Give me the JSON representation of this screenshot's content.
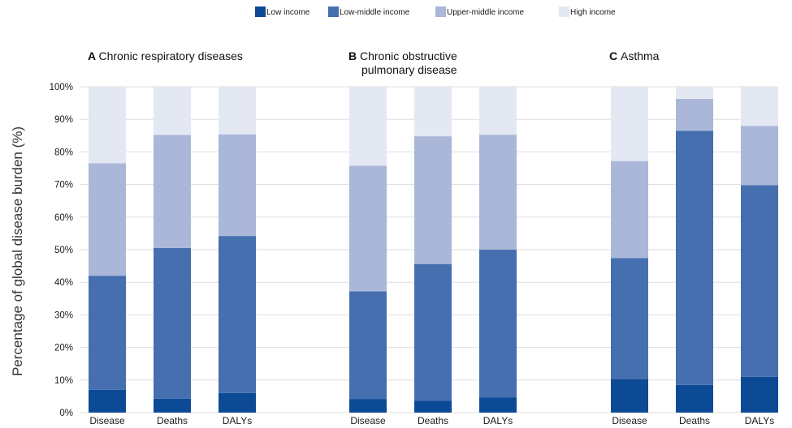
{
  "chart_data": {
    "type": "bar",
    "stacked": true,
    "ylabel": "Percentage of global disease burden (%)",
    "ylim": [
      0,
      100
    ],
    "yticks": [
      "0%",
      "10%",
      "20%",
      "30%",
      "40%",
      "50%",
      "60%",
      "70%",
      "80%",
      "90%",
      "100%"
    ],
    "grid": true,
    "legend_position": "top-center",
    "legend": [
      {
        "name": "Low income",
        "color": "#0d4a96"
      },
      {
        "name": "Low-middle income",
        "color": "#466fb0"
      },
      {
        "name": "Upper-middle income",
        "color": "#abb7d9"
      },
      {
        "name": "High income",
        "color": "#e4e8f3"
      }
    ],
    "panels": [
      {
        "letter": "A",
        "title_lines": [
          "Chronic respiratory diseases"
        ],
        "categories": [
          "Disease",
          "Deaths",
          "DALYs"
        ],
        "series": [
          {
            "name": "Low income",
            "values": [
              7,
              4.3,
              6
            ]
          },
          {
            "name": "Low-middle income",
            "values": [
              35,
              46.2,
              48.2
            ]
          },
          {
            "name": "Upper-middle income",
            "values": [
              34.5,
              34.7,
              31.2
            ]
          },
          {
            "name": "High income",
            "values": [
              23.5,
              14.8,
              14.6
            ]
          }
        ]
      },
      {
        "letter": "B",
        "title_lines": [
          "Chronic obstructive",
          "pulmonary disease"
        ],
        "categories": [
          "Disease",
          "Deaths",
          "DALYs"
        ],
        "series": [
          {
            "name": "Low income",
            "values": [
              4.2,
              3.6,
              4.6
            ]
          },
          {
            "name": "Low-middle income",
            "values": [
              33,
              42,
              45.4
            ]
          },
          {
            "name": "Upper-middle income",
            "values": [
              38.6,
              39.2,
              35.3
            ]
          },
          {
            "name": "High income",
            "values": [
              24.2,
              15.2,
              14.7
            ]
          }
        ]
      },
      {
        "letter": "C",
        "title_lines": [
          "Asthma"
        ],
        "categories": [
          "Disease",
          "Deaths",
          "DALYs"
        ],
        "series": [
          {
            "name": "Low income",
            "values": [
              10.2,
              8.5,
              11
            ]
          },
          {
            "name": "Low-middle income",
            "values": [
              37.2,
              78,
              58.8
            ]
          },
          {
            "name": "Upper-middle income",
            "values": [
              29.8,
              9.8,
              18.2
            ]
          },
          {
            "name": "High income",
            "values": [
              22.8,
              3.7,
              12
            ]
          }
        ]
      }
    ]
  }
}
